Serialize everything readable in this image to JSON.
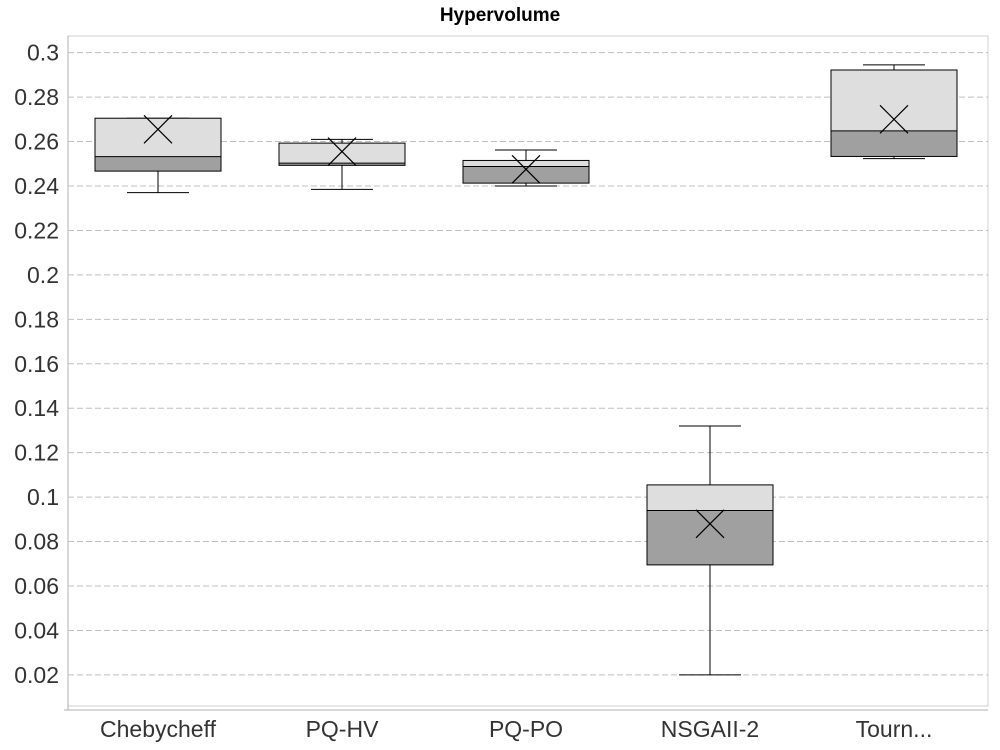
{
  "chart_data": {
    "type": "box",
    "title": "Hypervolume",
    "xlabel": "",
    "ylabel": "",
    "ylim": [
      0.006,
      0.3075
    ],
    "yticks": [
      0.02,
      0.04,
      0.06,
      0.08,
      0.1,
      0.12,
      0.14,
      0.16,
      0.18,
      0.2,
      0.22,
      0.24,
      0.26,
      0.28,
      0.3
    ],
    "ytick_labels": [
      "0.02",
      "0.04",
      "0.06",
      "0.08",
      "0.1",
      "0.12",
      "0.14",
      "0.16",
      "0.18",
      "0.2",
      "0.22",
      "0.24",
      "0.26",
      "0.28",
      "0.3"
    ],
    "grid": true,
    "colors": {
      "upper_box": "#dedede",
      "lower_box": "#a0a0a0",
      "line": "#000000",
      "grid": "#c0c0c0"
    },
    "categories": [
      "Chebycheff",
      "PQ-HV",
      "PQ-PO",
      "NSGAII-2",
      "Tourn..."
    ],
    "boxes": [
      {
        "label": "Chebycheff",
        "min": 0.237,
        "q1": 0.2467,
        "median": 0.2532,
        "q3": 0.2705,
        "max": 0.2705,
        "mean": 0.2655
      },
      {
        "label": "PQ-HV",
        "min": 0.2385,
        "q1": 0.2493,
        "median": 0.2503,
        "q3": 0.2593,
        "max": 0.261,
        "mean": 0.2555
      },
      {
        "label": "PQ-PO",
        "min": 0.24,
        "q1": 0.2413,
        "median": 0.2488,
        "q3": 0.2515,
        "max": 0.2562,
        "mean": 0.2475
      },
      {
        "label": "NSGAII-2",
        "min": 0.02,
        "q1": 0.0695,
        "median": 0.094,
        "q3": 0.1055,
        "max": 0.132,
        "mean": 0.088
      },
      {
        "label": "Tourn...",
        "min": 0.2523,
        "q1": 0.2533,
        "median": 0.2648,
        "q3": 0.2922,
        "max": 0.2945,
        "mean": 0.27
      }
    ]
  }
}
